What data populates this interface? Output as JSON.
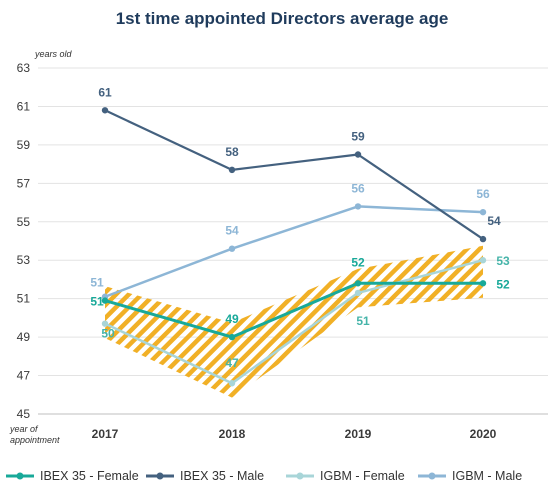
{
  "chart_data": {
    "type": "line",
    "title": "1st time appointed Directors average age",
    "ylabel": "years old",
    "xlabel": "year of appointment",
    "x": [
      "2017",
      "2018",
      "2019",
      "2020"
    ],
    "ylim": [
      45,
      63
    ],
    "yticks": [
      45,
      47,
      49,
      51,
      53,
      55,
      57,
      59,
      61,
      63
    ],
    "grid": true,
    "legend_position": "bottom",
    "series": [
      {
        "name": "IBEX 35 - Female",
        "values": [
          50.9,
          49.0,
          51.8,
          51.8
        ],
        "labels": [
          "51",
          "49",
          "52",
          "52"
        ],
        "color": "#18a999",
        "width": 3
      },
      {
        "name": "IBEX 35 - Male",
        "values": [
          60.8,
          57.7,
          58.5,
          54.1
        ],
        "labels": [
          "61",
          "58",
          "59",
          "54"
        ],
        "color": "#44617f",
        "width": 2.2
      },
      {
        "name": "IGBM - Female",
        "values": [
          49.7,
          46.6,
          51.3,
          53.0
        ],
        "labels": [
          "50",
          "47",
          "51",
          "53"
        ],
        "color": "#a8d5d8",
        "width": 2.5
      },
      {
        "name": "IGBM - Male",
        "values": [
          51.1,
          53.6,
          55.8,
          55.5
        ],
        "labels": [
          "51",
          "54",
          "56",
          "56"
        ],
        "color": "#8db6d6",
        "width": 2.5
      }
    ],
    "hatch_color": "#f0ac1b"
  }
}
